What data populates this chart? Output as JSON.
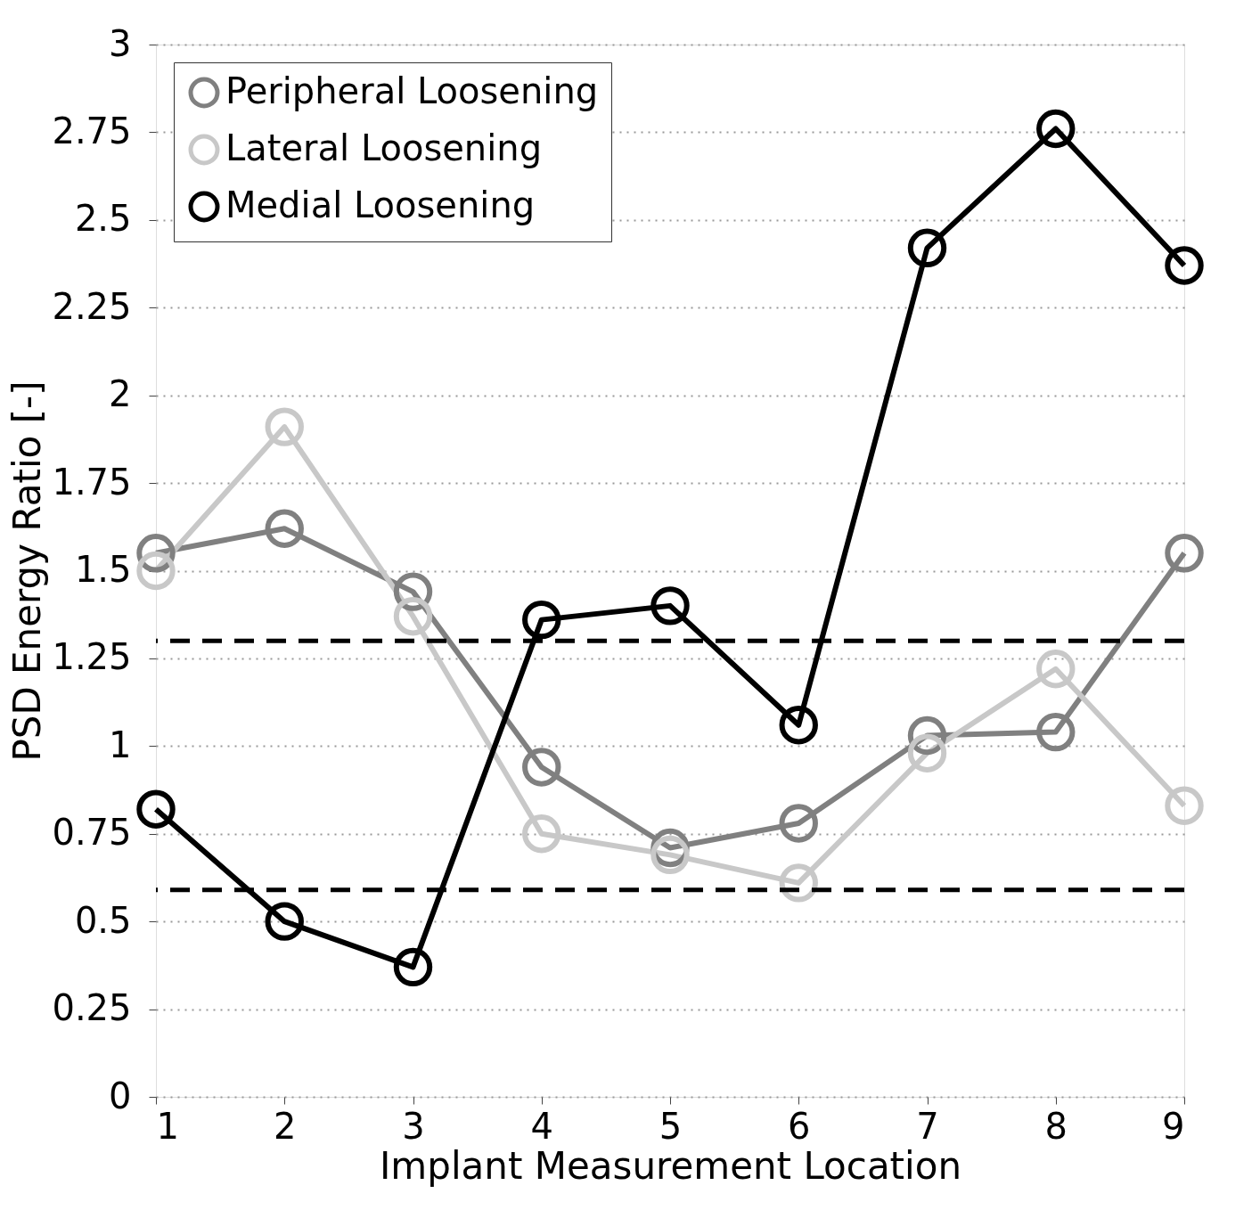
{
  "chart_data": {
    "type": "line",
    "xlabel": "Implant Measurement Location",
    "ylabel": "PSD Energy Ratio [-]",
    "x": [
      1,
      2,
      3,
      4,
      5,
      6,
      7,
      8,
      9
    ],
    "series": [
      {
        "name": "Peripheral Loosening",
        "color": "#808080",
        "values": [
          1.55,
          1.62,
          1.44,
          0.94,
          0.71,
          0.78,
          1.03,
          1.04,
          1.55
        ]
      },
      {
        "name": "Lateral Loosening",
        "color": "#c8c8c8",
        "values": [
          1.5,
          1.91,
          1.37,
          0.75,
          0.69,
          0.61,
          0.98,
          1.22,
          0.83
        ]
      },
      {
        "name": "Medial Loosening",
        "color": "#000000",
        "values": [
          0.82,
          0.5,
          0.37,
          1.36,
          1.4,
          1.06,
          2.42,
          2.76,
          2.37
        ]
      }
    ],
    "xlim": [
      1,
      9
    ],
    "xticks": [
      1,
      2,
      3,
      4,
      5,
      6,
      7,
      8,
      9
    ],
    "ylim": [
      0,
      3
    ],
    "yticks": [
      0,
      0.25,
      0.5,
      0.75,
      1,
      1.25,
      1.5,
      1.75,
      2,
      2.25,
      2.5,
      2.75,
      3
    ],
    "ref_lines": [
      {
        "axis": "y",
        "value": 1.3,
        "color": "#000000",
        "line_style": "dashed"
      },
      {
        "axis": "y",
        "value": 0.59,
        "color": "#000000",
        "line_style": "dashed"
      }
    ],
    "grid": "y",
    "legend": "top left",
    "marker": "circle",
    "line_style": "solid"
  }
}
